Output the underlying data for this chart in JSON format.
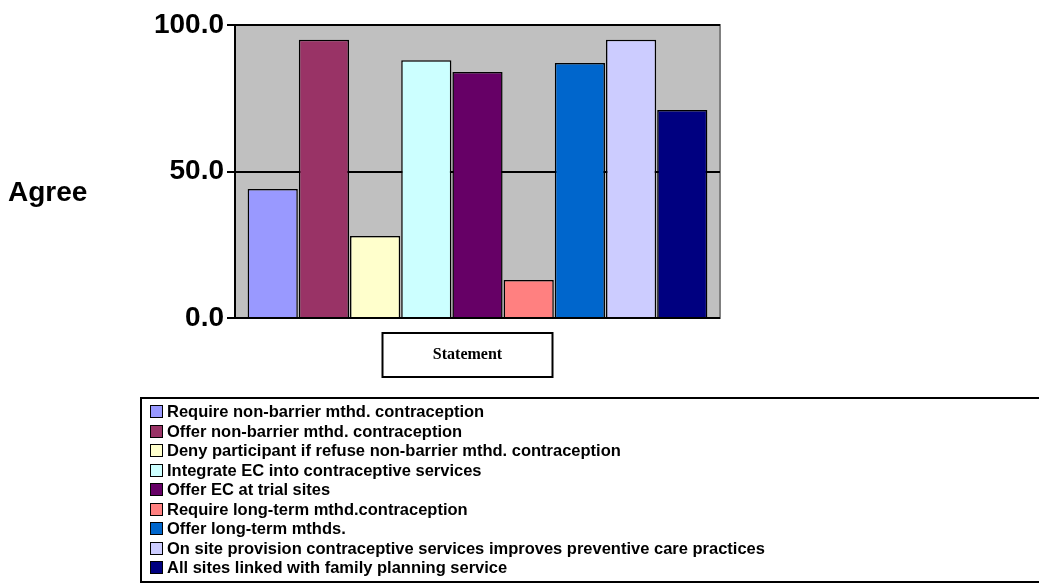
{
  "chart_data": {
    "type": "bar",
    "xlabel": "Statement",
    "ylabel": "Agree",
    "categories": [
      null
    ],
    "ylim": [
      0,
      100
    ],
    "yticks": [
      {
        "value": 0,
        "label": "0.0"
      },
      {
        "value": 50,
        "label": "50.0"
      },
      {
        "value": 100,
        "label": "100.0"
      }
    ],
    "grid": "y",
    "legend": "bottom",
    "series": [
      {
        "name": "Require non-barrier mthd. contraception",
        "color": "#9999ff",
        "values": [
          44
        ]
      },
      {
        "name": "Offer non-barrier mthd. contraception",
        "color": "#993366",
        "values": [
          95
        ]
      },
      {
        "name": "Deny participant  if refuse non-barrier mthd. contraception",
        "color": "#ffffcc",
        "values": [
          28
        ]
      },
      {
        "name": "Integrate EC  into contraceptive services",
        "color": "#ccffff",
        "values": [
          88
        ]
      },
      {
        "name": "Offer EC at trial sites",
        "color": "#660066",
        "values": [
          84
        ]
      },
      {
        "name": "Require long-term mthd.contraception",
        "color": "#ff8080",
        "values": [
          13
        ]
      },
      {
        "name": "Offer long-term mthds.",
        "color": "#0066cc",
        "values": [
          87
        ]
      },
      {
        "name": "On site provision contraceptive services improves preventive care practices",
        "color": "#ccccff",
        "values": [
          95
        ]
      },
      {
        "name": "All sites linked with family planning  service",
        "color": "#000080",
        "values": [
          71
        ]
      }
    ]
  }
}
